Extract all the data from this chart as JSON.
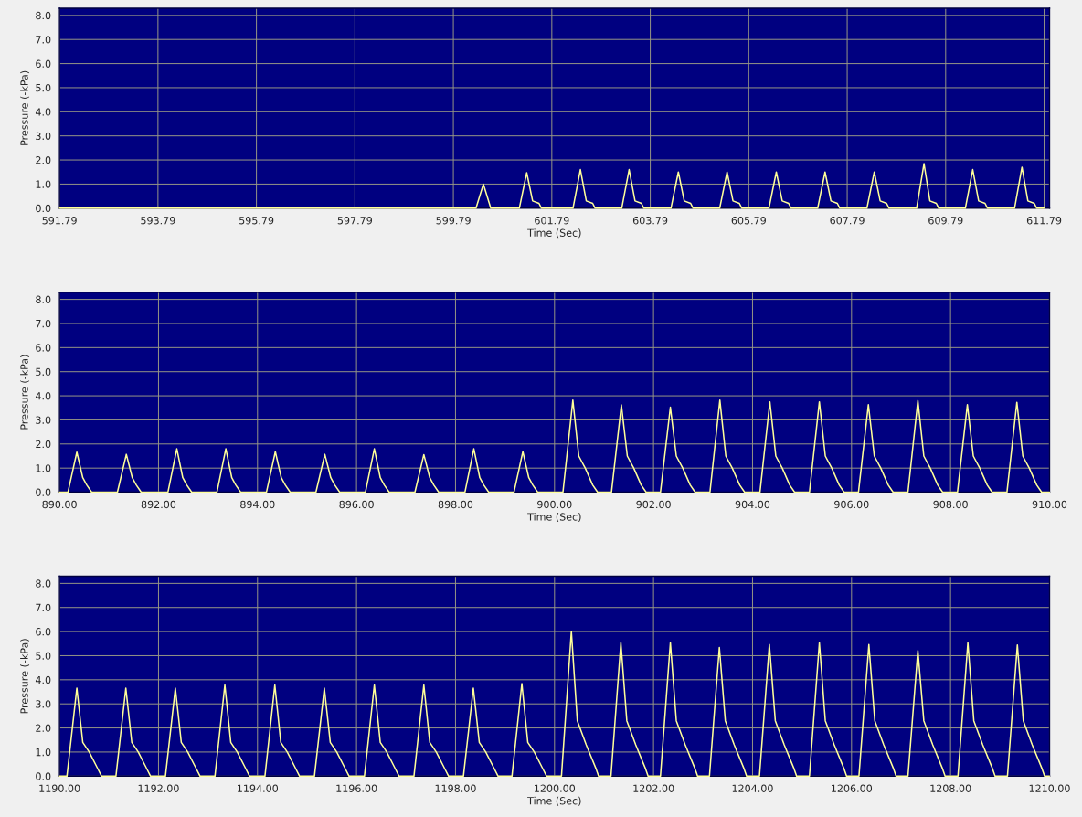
{
  "chart_data": [
    {
      "type": "line",
      "xlabel": "Time (Sec)",
      "ylabel": "Pressure (-kPa)",
      "xlim": [
        591.79,
        611.9
      ],
      "ylim": [
        0,
        8.3
      ],
      "grid": true,
      "xticks": [
        591.79,
        593.79,
        595.79,
        597.79,
        599.79,
        601.79,
        603.79,
        605.79,
        607.79,
        609.79,
        611.79
      ],
      "yticks": [
        {
          "value": 0,
          "label": "0.0"
        },
        {
          "value": 1,
          "label": "1.0"
        },
        {
          "value": 2,
          "label": "2.0"
        },
        {
          "value": 3,
          "label": "3.0"
        },
        {
          "value": 4,
          "label": "4.0"
        },
        {
          "value": 5,
          "label": "5.0"
        },
        {
          "value": 6,
          "label": "6.0"
        },
        {
          "value": 7,
          "label": "7.0"
        },
        {
          "value": 8,
          "label": "8.0"
        }
      ],
      "series": [
        {
          "color": "#ffff99",
          "x": [
            591.79,
            600.25,
            600.4,
            600.55,
            601.13,
            601.28,
            601.4,
            601.53,
            601.58,
            602.22,
            602.37,
            602.49,
            602.62,
            602.67,
            603.21,
            603.36,
            603.48,
            603.61,
            603.66,
            604.21,
            604.36,
            604.48,
            604.61,
            604.66,
            605.2,
            605.35,
            605.47,
            605.6,
            605.65,
            606.2,
            606.35,
            606.47,
            606.6,
            606.65,
            607.19,
            607.34,
            607.46,
            607.59,
            607.64,
            608.19,
            608.34,
            608.46,
            608.59,
            608.64,
            609.2,
            609.35,
            609.47,
            609.6,
            609.65,
            610.19,
            610.34,
            610.46,
            610.59,
            610.64,
            611.19,
            611.34,
            611.46,
            611.59,
            611.64,
            611.79
          ],
          "values": [
            0,
            0,
            1.0,
            0,
            0,
            1.47,
            0.3,
            0.2,
            0,
            0,
            1.6,
            0.3,
            0.2,
            0,
            0,
            1.6,
            0.3,
            0.2,
            0,
            0,
            1.5,
            0.3,
            0.2,
            0,
            0,
            1.5,
            0.3,
            0.2,
            0,
            0,
            1.5,
            0.3,
            0.2,
            0,
            0,
            1.5,
            0.3,
            0.2,
            0,
            0,
            1.5,
            0.3,
            0.2,
            0,
            0,
            1.85,
            0.3,
            0.2,
            0,
            0,
            1.6,
            0.3,
            0.2,
            0,
            0,
            1.7,
            0.3,
            0.2,
            0,
            0
          ]
        }
      ]
    },
    {
      "type": "line",
      "xlabel": "Time (Sec)",
      "ylabel": "Pressure (-kPa)",
      "xlim": [
        890,
        910
      ],
      "ylim": [
        0,
        8.3
      ],
      "grid": true,
      "xticks": [
        {
          "value": 890,
          "label": "890.00"
        },
        {
          "value": 892,
          "label": "892.00"
        },
        {
          "value": 894,
          "label": "894.00"
        },
        {
          "value": 896,
          "label": "896.00"
        },
        {
          "value": 898,
          "label": "898.00"
        },
        {
          "value": 900,
          "label": "900.00"
        },
        {
          "value": 902,
          "label": "902.00"
        },
        {
          "value": 904,
          "label": "904.00"
        },
        {
          "value": 906,
          "label": "906.00"
        },
        {
          "value": 908,
          "label": "908.00"
        },
        {
          "value": 910,
          "label": "910.00"
        }
      ],
      "yticks": [
        {
          "value": 0,
          "label": "0.0"
        },
        {
          "value": 1,
          "label": "1.0"
        },
        {
          "value": 2,
          "label": "2.0"
        },
        {
          "value": 3,
          "label": "3.0"
        },
        {
          "value": 4,
          "label": "4.0"
        },
        {
          "value": 5,
          "label": "5.0"
        },
        {
          "value": 6,
          "label": "6.0"
        },
        {
          "value": 7,
          "label": "7.0"
        },
        {
          "value": 8,
          "label": "8.0"
        }
      ],
      "series": [
        {
          "color": "#ffff99",
          "x": [
            890,
            890.17,
            890.35,
            890.47,
            890.55,
            890.65,
            891.17,
            891.35,
            891.47,
            891.55,
            891.65,
            892.19,
            892.37,
            892.49,
            892.57,
            892.67,
            893.18,
            893.36,
            893.48,
            893.56,
            893.66,
            894.18,
            894.36,
            894.48,
            894.56,
            894.66,
            895.18,
            895.36,
            895.48,
            895.56,
            895.66,
            896.18,
            896.36,
            896.48,
            896.56,
            896.66,
            897.18,
            897.36,
            897.48,
            897.56,
            897.66,
            898.19,
            898.37,
            898.49,
            898.57,
            898.67,
            899.18,
            899.36,
            899.48,
            899.56,
            899.66,
            900.17,
            900.37,
            900.49,
            900.62,
            900.77,
            900.87,
            901.15,
            901.35,
            901.47,
            901.6,
            901.75,
            901.85,
            902.14,
            902.34,
            902.46,
            902.59,
            902.74,
            902.84,
            903.14,
            903.34,
            903.46,
            903.59,
            903.74,
            903.84,
            904.15,
            904.35,
            904.47,
            904.6,
            904.75,
            904.85,
            905.15,
            905.35,
            905.47,
            905.6,
            905.75,
            905.85,
            906.14,
            906.34,
            906.46,
            906.59,
            906.74,
            906.84,
            907.14,
            907.34,
            907.46,
            907.59,
            907.74,
            907.84,
            908.14,
            908.34,
            908.46,
            908.59,
            908.74,
            908.84,
            909.14,
            909.34,
            909.46,
            909.59,
            909.74,
            909.84,
            910
          ],
          "values": [
            0,
            0,
            1.66,
            0.6,
            0.3,
            0,
            0,
            1.57,
            0.6,
            0.3,
            0,
            0,
            1.8,
            0.6,
            0.3,
            0,
            0,
            1.8,
            0.6,
            0.3,
            0,
            0,
            1.68,
            0.6,
            0.3,
            0,
            0,
            1.57,
            0.6,
            0.3,
            0,
            0,
            1.8,
            0.6,
            0.3,
            0,
            0,
            1.56,
            0.6,
            0.3,
            0,
            0,
            1.8,
            0.6,
            0.3,
            0,
            0,
            1.68,
            0.6,
            0.3,
            0,
            0,
            3.82,
            1.5,
            1.0,
            0.3,
            0,
            0,
            3.62,
            1.5,
            1.0,
            0.3,
            0,
            0,
            3.53,
            1.5,
            1.0,
            0.3,
            0,
            0,
            3.82,
            1.5,
            1.0,
            0.3,
            0,
            0,
            3.75,
            1.5,
            1.0,
            0.3,
            0,
            0,
            3.75,
            1.5,
            1.0,
            0.3,
            0,
            0,
            3.63,
            1.5,
            1.0,
            0.3,
            0,
            0,
            3.8,
            1.5,
            1.0,
            0.3,
            0,
            0,
            3.63,
            1.5,
            1.0,
            0.3,
            0,
            0,
            3.73,
            1.5,
            1.0,
            0.3,
            0,
            0
          ]
        }
      ]
    },
    {
      "type": "line",
      "xlabel": "Time (Sec)",
      "ylabel": "Pressure (-kPa)",
      "xlim": [
        1190,
        1210
      ],
      "ylim": [
        0,
        8.3
      ],
      "grid": true,
      "xticks": [
        {
          "value": 1190,
          "label": "1190.00"
        },
        {
          "value": 1192,
          "label": "1192.00"
        },
        {
          "value": 1194,
          "label": "1194.00"
        },
        {
          "value": 1196,
          "label": "1196.00"
        },
        {
          "value": 1198,
          "label": "1198.00"
        },
        {
          "value": 1200,
          "label": "1200.00"
        },
        {
          "value": 1202,
          "label": "1202.00"
        },
        {
          "value": 1204,
          "label": "1204.00"
        },
        {
          "value": 1206,
          "label": "1206.00"
        },
        {
          "value": 1208,
          "label": "1208.00"
        },
        {
          "value": 1210,
          "label": "1210.00"
        }
      ],
      "yticks": [
        {
          "value": 0,
          "label": "0.0"
        },
        {
          "value": 1,
          "label": "1.0"
        },
        {
          "value": 2,
          "label": "2.0"
        },
        {
          "value": 3,
          "label": "3.0"
        },
        {
          "value": 4,
          "label": "4.0"
        },
        {
          "value": 5,
          "label": "5.0"
        },
        {
          "value": 6,
          "label": "6.0"
        },
        {
          "value": 7,
          "label": "7.0"
        },
        {
          "value": 8,
          "label": "8.0"
        }
      ],
      "series": [
        {
          "color": "#ffff99",
          "x": [
            1190,
            1190.15,
            1190.35,
            1190.47,
            1190.6,
            1190.75,
            1190.85,
            1191.14,
            1191.34,
            1191.46,
            1191.59,
            1191.74,
            1191.84,
            1192.14,
            1192.34,
            1192.46,
            1192.59,
            1192.74,
            1192.84,
            1193.14,
            1193.34,
            1193.46,
            1193.59,
            1193.74,
            1193.84,
            1194.15,
            1194.35,
            1194.47,
            1194.6,
            1194.75,
            1194.85,
            1195.15,
            1195.35,
            1195.47,
            1195.6,
            1195.75,
            1195.85,
            1196.16,
            1196.36,
            1196.48,
            1196.61,
            1196.76,
            1196.86,
            1197.16,
            1197.36,
            1197.48,
            1197.61,
            1197.76,
            1197.86,
            1198.16,
            1198.36,
            1198.48,
            1198.61,
            1198.76,
            1198.86,
            1199.14,
            1199.34,
            1199.46,
            1199.59,
            1199.74,
            1199.84,
            1200.14,
            1200.34,
            1200.46,
            1200.64,
            1200.84,
            1200.89,
            1201.14,
            1201.34,
            1201.46,
            1201.64,
            1201.84,
            1201.89,
            1202.14,
            1202.34,
            1202.46,
            1202.64,
            1202.84,
            1202.89,
            1203.13,
            1203.33,
            1203.45,
            1203.63,
            1203.83,
            1203.88,
            1204.14,
            1204.34,
            1204.46,
            1204.64,
            1204.84,
            1204.89,
            1205.15,
            1205.35,
            1205.47,
            1205.65,
            1205.85,
            1205.9,
            1206.15,
            1206.35,
            1206.47,
            1206.65,
            1206.85,
            1206.9,
            1207.14,
            1207.34,
            1207.46,
            1207.64,
            1207.84,
            1207.89,
            1208.15,
            1208.35,
            1208.47,
            1208.65,
            1208.85,
            1208.9,
            1209.15,
            1209.35,
            1209.47,
            1209.65,
            1209.85,
            1209.9,
            1210
          ],
          "values": [
            0,
            0,
            3.65,
            1.4,
            1.0,
            0.4,
            0,
            0,
            3.65,
            1.4,
            1.0,
            0.4,
            0,
            0,
            3.65,
            1.4,
            1.0,
            0.4,
            0,
            0,
            3.78,
            1.4,
            1.0,
            0.4,
            0,
            0,
            3.78,
            1.4,
            1.0,
            0.4,
            0,
            0,
            3.65,
            1.4,
            1.0,
            0.4,
            0,
            0,
            3.78,
            1.4,
            1.0,
            0.4,
            0,
            0,
            3.78,
            1.4,
            1.0,
            0.4,
            0,
            0,
            3.65,
            1.4,
            1.0,
            0.4,
            0,
            0,
            3.84,
            1.4,
            1.0,
            0.4,
            0,
            0,
            6.0,
            2.3,
            1.3,
            0.3,
            0,
            0,
            5.54,
            2.3,
            1.3,
            0.3,
            0,
            0,
            5.54,
            2.3,
            1.3,
            0.3,
            0,
            0,
            5.34,
            2.3,
            1.3,
            0.3,
            0,
            0,
            5.46,
            2.3,
            1.3,
            0.3,
            0,
            0,
            5.54,
            2.3,
            1.3,
            0.3,
            0,
            0,
            5.46,
            2.3,
            1.3,
            0.3,
            0,
            0,
            5.21,
            2.3,
            1.3,
            0.3,
            0,
            0,
            5.54,
            2.3,
            1.3,
            0.3,
            0,
            0,
            5.44,
            2.3,
            1.3,
            0.3,
            0,
            0
          ]
        }
      ]
    }
  ]
}
